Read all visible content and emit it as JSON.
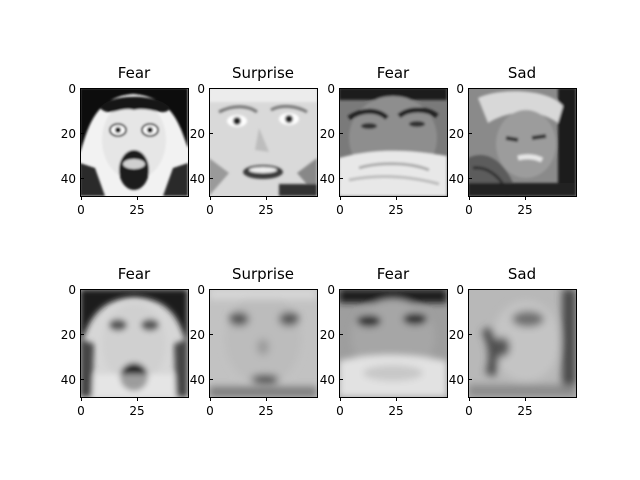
{
  "panels": [
    {
      "title": "Fear",
      "kind": "photo"
    },
    {
      "title": "Surprise",
      "kind": "photo"
    },
    {
      "title": "Fear",
      "kind": "photo"
    },
    {
      "title": "Sad",
      "kind": "photo"
    },
    {
      "title": "Fear",
      "kind": "blur"
    },
    {
      "title": "Surprise",
      "kind": "blur"
    },
    {
      "title": "Fear",
      "kind": "blur"
    },
    {
      "title": "Sad",
      "kind": "blur"
    }
  ],
  "axes": {
    "yticks": [
      "0",
      "20",
      "40"
    ],
    "xticks": [
      "0",
      "25"
    ]
  },
  "colors": {
    "background": "#ffffff",
    "frame": "#000000"
  }
}
